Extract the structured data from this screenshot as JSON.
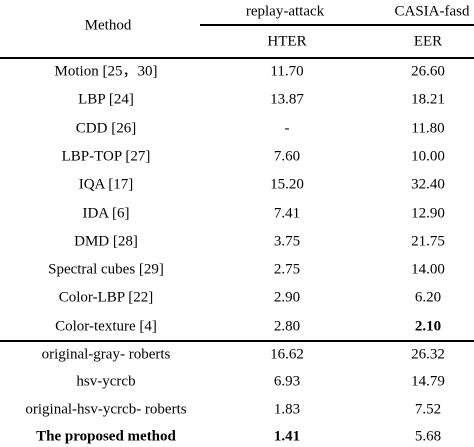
{
  "table": {
    "header": {
      "method": "Method",
      "groups": [
        "replay-attack",
        "CASIA-fasd"
      ],
      "metrics": [
        "HTER",
        "EER"
      ]
    },
    "rows": [
      [
        "Motion [25，30]",
        "11.70",
        "26.60"
      ],
      [
        "LBP [24]",
        "13.87",
        "18.21"
      ],
      [
        "CDD [26]",
        "-",
        "11.80"
      ],
      [
        "LBP-TOP [27]",
        "7.60",
        "10.00"
      ],
      [
        "IQA [17]",
        "15.20",
        "32.40"
      ],
      [
        "IDA [6]",
        "7.41",
        "12.90"
      ],
      [
        "DMD [28]",
        "3.75",
        "21.75"
      ],
      [
        "Spectral cubes [29]",
        "2.75",
        "14.00"
      ],
      [
        "Color-LBP [22]",
        "2.90",
        "6.20"
      ],
      [
        "Color-texture [4]",
        "2.80",
        "2.10"
      ],
      [
        "original-gray- roberts",
        "16.62",
        "26.32"
      ],
      [
        "hsv-ycrcb",
        "6.93",
        "14.79"
      ],
      [
        "original-hsv-ycrcb- roberts",
        "1.83",
        "7.52"
      ],
      [
        "The proposed method",
        "1.41",
        "5.68"
      ]
    ]
  }
}
